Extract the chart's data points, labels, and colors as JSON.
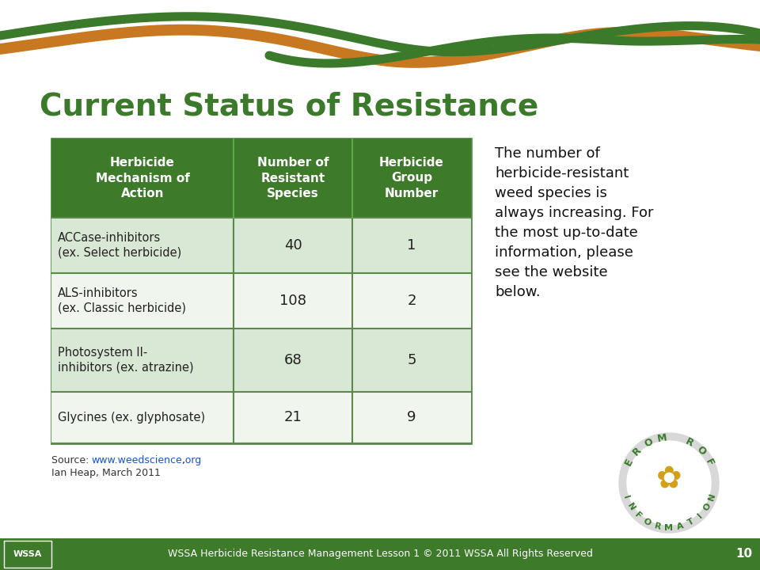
{
  "title": "Current Status of Resistance",
  "title_color": "#3a7a2a",
  "title_fontsize": 28,
  "bg_color": "#ffffff",
  "header_bg": "#3d7a2a",
  "header_text_color": "#ffffff",
  "row_bg_light": "#d9e8d4",
  "row_bg_white": "#f0f5ee",
  "border_color": "#5a8a4a",
  "table_headers": [
    "Herbicide\nMechanism of\nAction",
    "Number of\nResistant\nSpecies",
    "Herbicide\nGroup\nNumber"
  ],
  "table_rows": [
    [
      "ACCase-inhibitors\n(ex. Select herbicide)",
      "40",
      "1"
    ],
    [
      "ALS-inhibitors\n(ex. Classic herbicide)",
      "108",
      "2"
    ],
    [
      "Photosystem II-\ninhibitors (ex. atrazine)",
      "68",
      "5"
    ],
    [
      "Glycines (ex. glyphosate)",
      "21",
      "9"
    ]
  ],
  "side_text": "The number of\nherbicide-resistant\nweed species is\nalways increasing. For\nthe most up-to-date\ninformation, please\nsee the website\nbelow.",
  "source_text": "Source: www.weedscience.org,\nIan Heap, March 2011",
  "source_link": "www.weedscience.org",
  "footer_bg": "#3d7a2a",
  "footer_text": "WSSA Herbicide Resistance Management Lesson 1 © 2011 WSSA All Rights Reserved",
  "footer_page": "10",
  "footer_text_color": "#ffffff",
  "wave_green": "#3a7a2a",
  "wave_orange": "#c87820",
  "for_more_color": "#3a7a2a"
}
